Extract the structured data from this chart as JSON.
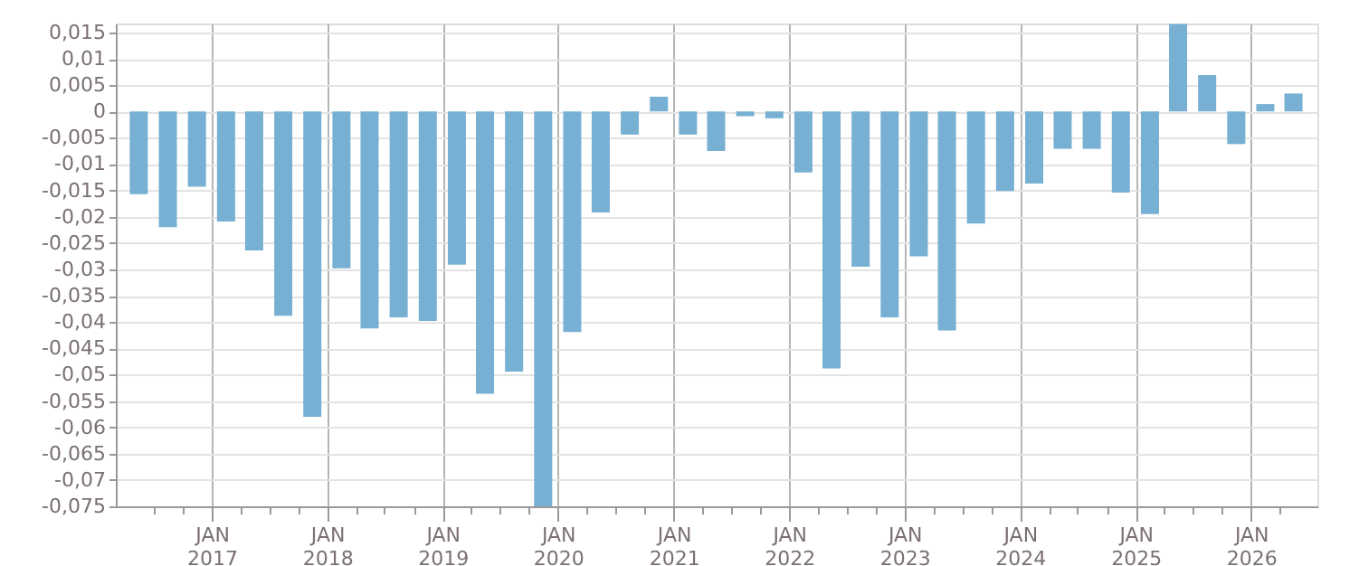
{
  "chart_data": {
    "type": "bar",
    "color": "#77b0d3",
    "x": [
      "2016-05-15",
      "2016-08-15",
      "2016-11-15",
      "2017-02-15",
      "2017-05-15",
      "2017-08-15",
      "2017-11-15",
      "2018-02-15",
      "2018-05-15",
      "2018-08-15",
      "2018-11-15",
      "2019-02-15",
      "2019-05-15",
      "2019-08-15",
      "2019-11-15",
      "2020-02-15",
      "2020-05-15",
      "2020-08-15",
      "2020-11-15",
      "2021-02-15",
      "2021-05-15",
      "2021-08-15",
      "2021-11-15",
      "2022-02-15",
      "2022-05-15",
      "2022-08-15",
      "2022-11-15",
      "2023-02-15",
      "2023-05-15",
      "2023-08-15",
      "2023-11-15",
      "2024-02-15",
      "2024-05-15",
      "2024-08-15",
      "2024-11-15",
      "2025-02-15",
      "2025-05-15",
      "2025-08-15",
      "2025-11-15",
      "2026-02-15",
      "2026-05-15"
    ],
    "values": [
      -0.0157,
      -0.022,
      -0.0143,
      -0.0209,
      -0.0264,
      -0.0388,
      -0.058,
      -0.0298,
      -0.0412,
      -0.0391,
      -0.0398,
      -0.0291,
      -0.0536,
      -0.0494,
      -0.075,
      -0.0419,
      -0.0192,
      -0.0044,
      0.0028,
      -0.0044,
      -0.0075,
      -0.0009,
      -0.0013,
      -0.0116,
      -0.0488,
      -0.0295,
      -0.0391,
      -0.0275,
      -0.0416,
      -0.0213,
      -0.0151,
      -0.0137,
      -0.0071,
      -0.0071,
      -0.0154,
      -0.0195,
      0.0166,
      0.0069,
      -0.0062,
      0.0014,
      0.0034
    ],
    "xlim": [
      "2016-04-01",
      "2026-07-01"
    ],
    "xticks": [
      {
        "value": "2016-07-01",
        "label": null
      },
      {
        "value": "2016-10-01",
        "label": null
      },
      {
        "value": "2017-01-01",
        "label": "JAN 2017"
      },
      {
        "value": "2017-04-01",
        "label": null
      },
      {
        "value": "2017-07-01",
        "label": null
      },
      {
        "value": "2017-10-01",
        "label": null
      },
      {
        "value": "2018-01-01",
        "label": "JAN 2018"
      },
      {
        "value": "2018-04-01",
        "label": null
      },
      {
        "value": "2018-07-01",
        "label": null
      },
      {
        "value": "2018-10-01",
        "label": null
      },
      {
        "value": "2019-01-01",
        "label": "JAN 2019"
      },
      {
        "value": "2019-04-01",
        "label": null
      },
      {
        "value": "2019-07-01",
        "label": null
      },
      {
        "value": "2019-10-01",
        "label": null
      },
      {
        "value": "2020-01-01",
        "label": "JAN 2020"
      },
      {
        "value": "2020-04-01",
        "label": null
      },
      {
        "value": "2020-07-01",
        "label": null
      },
      {
        "value": "2020-10-01",
        "label": null
      },
      {
        "value": "2021-01-01",
        "label": "JAN 2021"
      },
      {
        "value": "2021-04-01",
        "label": null
      },
      {
        "value": "2021-07-01",
        "label": null
      },
      {
        "value": "2021-10-01",
        "label": null
      },
      {
        "value": "2022-01-01",
        "label": "JAN 2022"
      },
      {
        "value": "2022-04-01",
        "label": null
      },
      {
        "value": "2022-07-01",
        "label": null
      },
      {
        "value": "2022-10-01",
        "label": null
      },
      {
        "value": "2023-01-01",
        "label": "JAN 2023"
      },
      {
        "value": "2023-04-01",
        "label": null
      },
      {
        "value": "2023-07-01",
        "label": null
      },
      {
        "value": "2023-10-01",
        "label": null
      },
      {
        "value": "2024-01-01",
        "label": "JAN 2024"
      },
      {
        "value": "2024-04-01",
        "label": null
      },
      {
        "value": "2024-07-01",
        "label": null
      },
      {
        "value": "2024-10-01",
        "label": null
      },
      {
        "value": "2025-01-01",
        "label": "JAN 2025"
      },
      {
        "value": "2025-04-01",
        "label": null
      },
      {
        "value": "2025-07-01",
        "label": null
      },
      {
        "value": "2025-10-01",
        "label": null
      },
      {
        "value": "2026-01-01",
        "label": "JAN 2026"
      },
      {
        "value": "2026-04-01",
        "label": null
      }
    ],
    "ylim": [
      -0.075,
      0.0167
    ],
    "yticks": [
      {
        "value": -0.075,
        "label": "-0,075"
      },
      {
        "value": -0.07,
        "label": "-0,07"
      },
      {
        "value": -0.065,
        "label": "-0,065"
      },
      {
        "value": -0.06,
        "label": "-0,06"
      },
      {
        "value": -0.055,
        "label": "-0,055"
      },
      {
        "value": -0.05,
        "label": "-0,05"
      },
      {
        "value": -0.045,
        "label": "-0,045"
      },
      {
        "value": -0.04,
        "label": "-0,04"
      },
      {
        "value": -0.035,
        "label": "-0,035"
      },
      {
        "value": -0.03,
        "label": "-0,03"
      },
      {
        "value": -0.025,
        "label": "-0,025"
      },
      {
        "value": -0.02,
        "label": "-0,02"
      },
      {
        "value": -0.015,
        "label": "-0,015"
      },
      {
        "value": -0.01,
        "label": "-0,01"
      },
      {
        "value": -0.005,
        "label": "-0,005"
      },
      {
        "value": 0,
        "label": "0"
      },
      {
        "value": 0.005,
        "label": "0,005"
      },
      {
        "value": 0.01,
        "label": "0,01"
      },
      {
        "value": 0.015,
        "label": "0,015"
      }
    ],
    "grid": true
  }
}
